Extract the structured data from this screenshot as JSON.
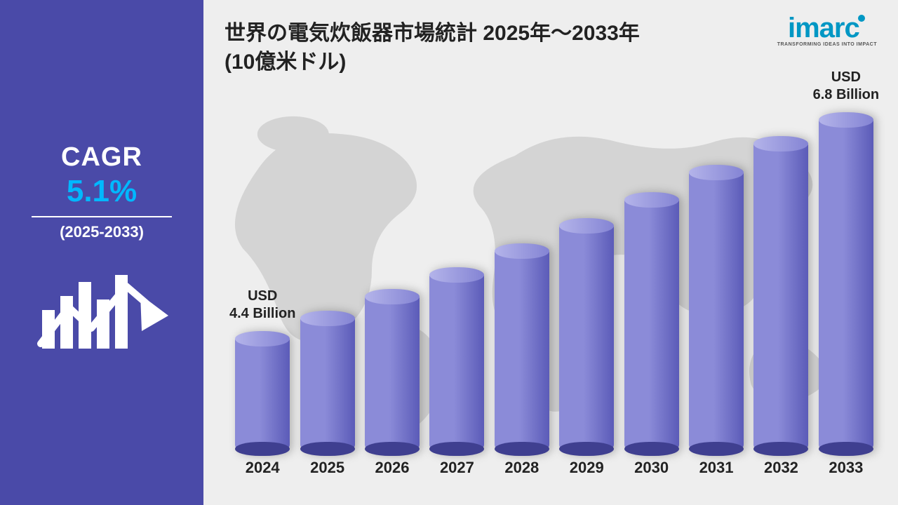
{
  "layout": {
    "left_panel_bg": "#4a4aa8",
    "right_panel_bg": "#eeeeee",
    "map_fill": "#d2d2d2"
  },
  "sidebar": {
    "cagr_label": "CAGR",
    "cagr_value": "5.1%",
    "cagr_value_color": "#00b8ff",
    "period": "(2025-2033)"
  },
  "header": {
    "title_line1": "世界の電気炊飯器市場統計 2025年～2033年",
    "title_line2": "(10億米ドル)"
  },
  "logo": {
    "text": "imarc",
    "color": "#0097c4",
    "tagline": "TRANSFORMING IDEAS INTO IMPACT",
    "tagline_color": "#555555"
  },
  "chart": {
    "type": "bar",
    "categories": [
      "2024",
      "2025",
      "2026",
      "2027",
      "2028",
      "2029",
      "2030",
      "2031",
      "2032",
      "2033"
    ],
    "values": [
      4.4,
      4.62,
      4.86,
      5.1,
      5.36,
      5.64,
      5.92,
      6.22,
      6.54,
      6.8
    ],
    "y_min": 3.2,
    "y_max": 7.2,
    "bar_fill_left": "#8b8bd8",
    "bar_fill_right": "#5b5bb8",
    "bar_cap_left": "#b4b4ea",
    "bar_cap_right": "#8484d4",
    "bar_base": "#3f3f90",
    "xlabel_color": "#222222",
    "xlabel_fontsize": 22,
    "start_label": "USD\n4.4 Billion",
    "end_label": "USD\n6.8 Billion",
    "value_label_color": "#222222",
    "value_label_fontsize": 20
  }
}
